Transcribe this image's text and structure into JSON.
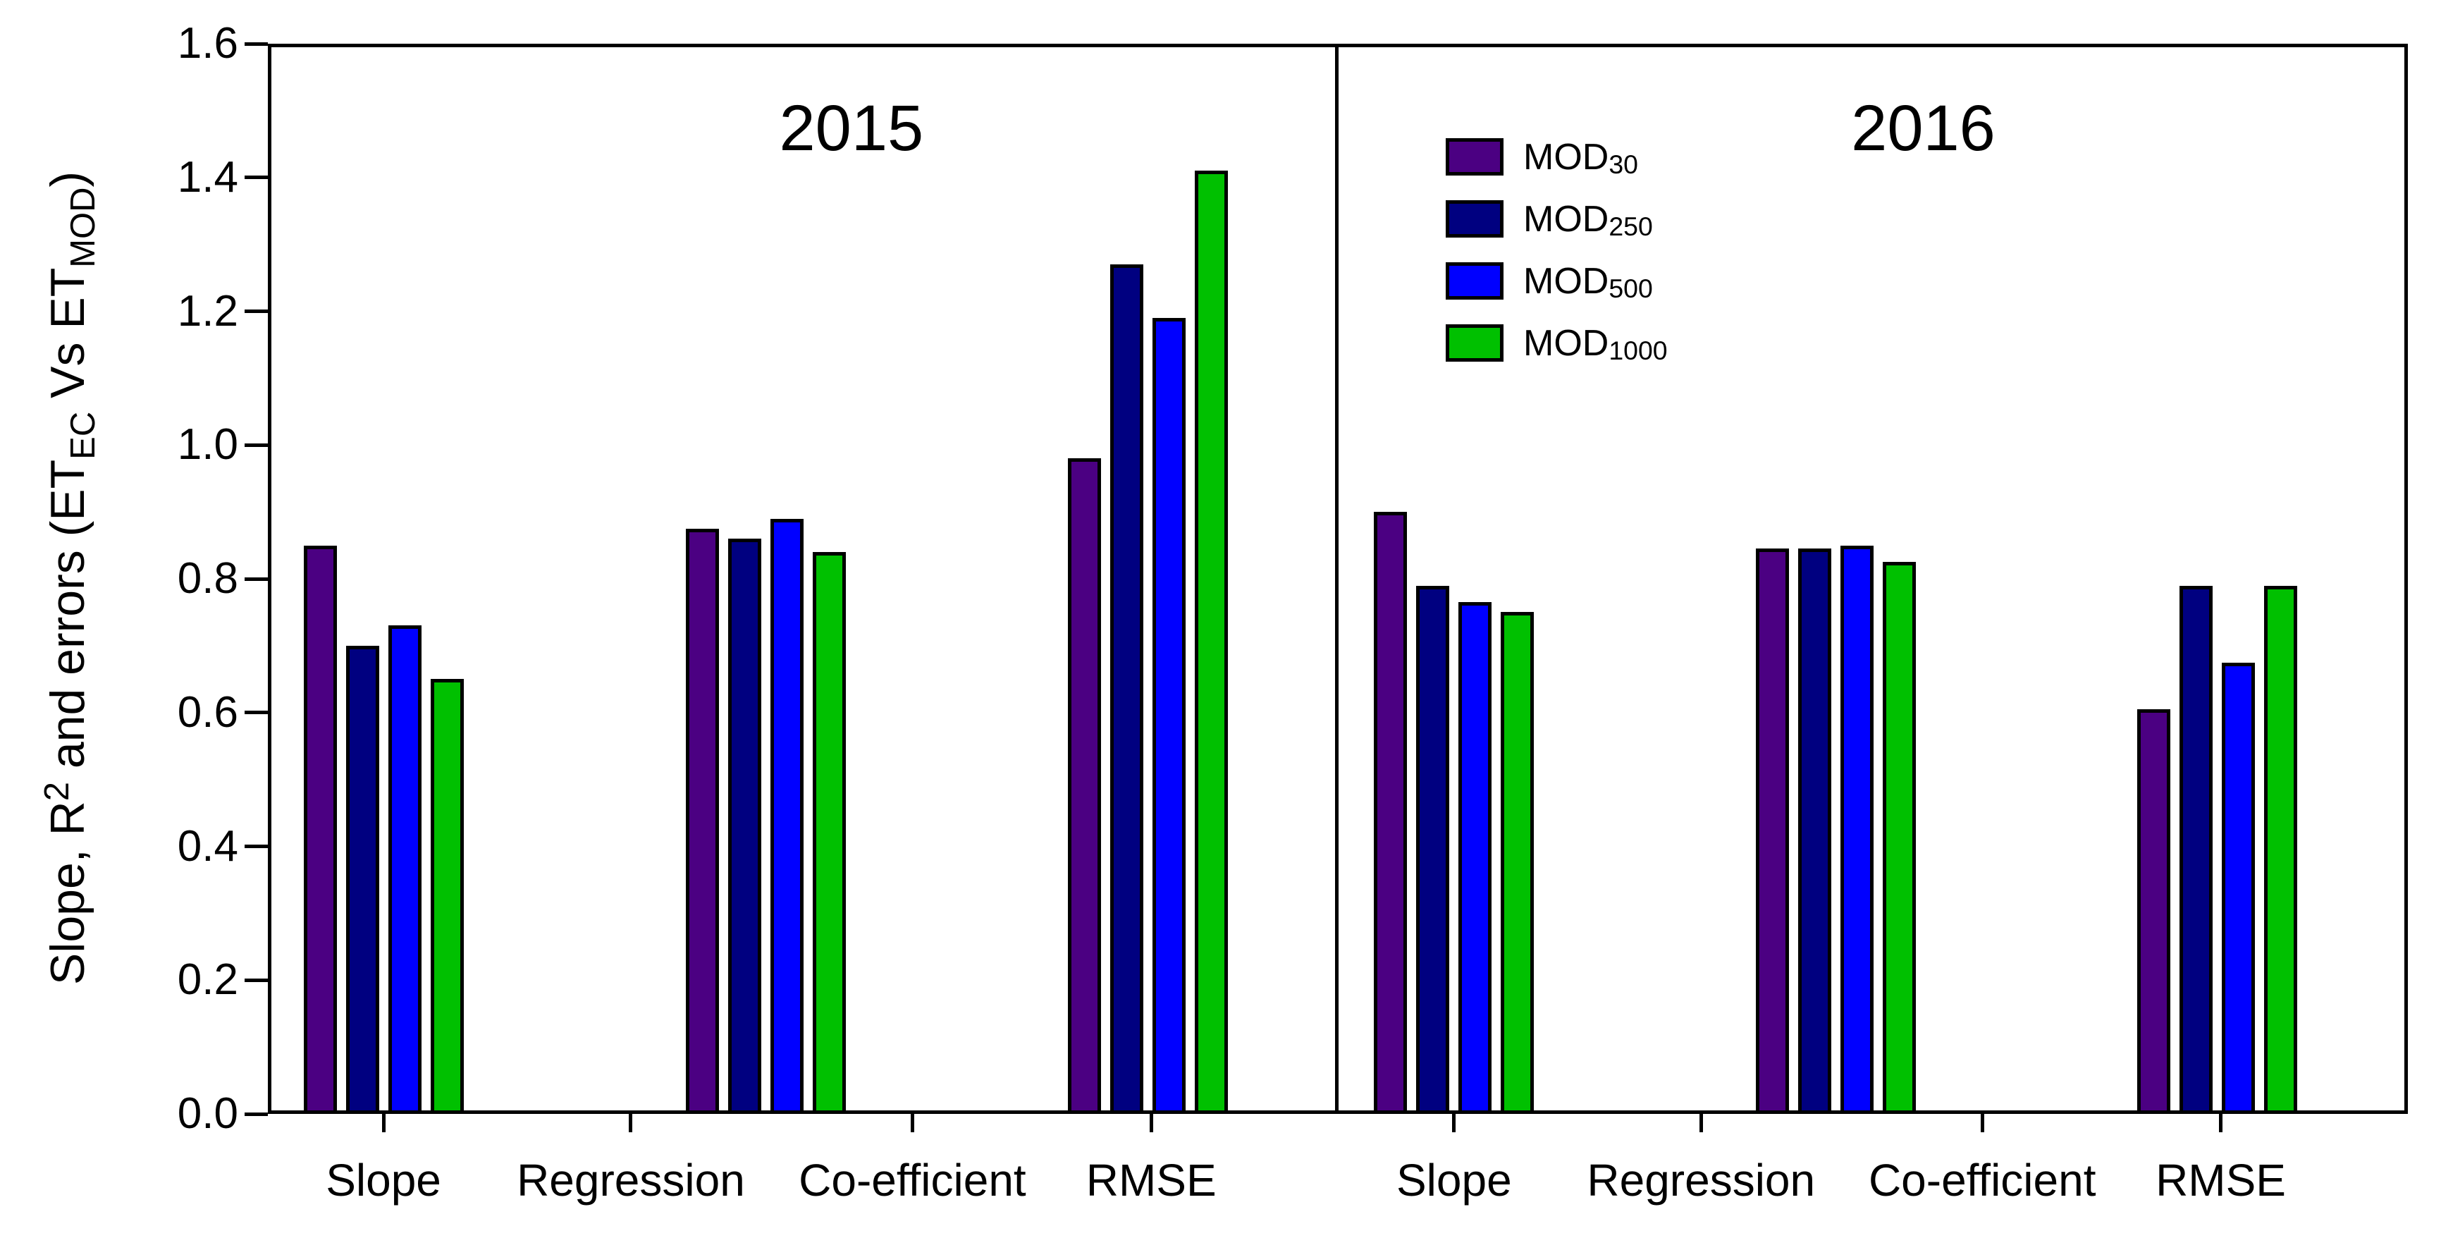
{
  "figure": {
    "background": "#ffffff",
    "axis_color": "#000000",
    "panels": [
      {
        "title": "2015"
      },
      {
        "title": "2016"
      }
    ],
    "series": [
      {
        "name": "MOD",
        "subscript": "30",
        "color": "#4B0082"
      },
      {
        "name": "MOD",
        "subscript": "250",
        "color": "#000080"
      },
      {
        "name": "MOD",
        "subscript": "500",
        "color": "#0000FF"
      },
      {
        "name": "MOD",
        "subscript": "1000",
        "color": "#00C000"
      }
    ],
    "x_tick_labels": [
      "Slope",
      "Regression",
      "Co-efficient",
      "RMSE"
    ],
    "y_axis": {
      "min": 0,
      "max": 1.6,
      "step": 0.2,
      "tick_labels": [
        "0.0",
        "0.2",
        "0.4",
        "0.6",
        "0.8",
        "1.0",
        "1.2",
        "1.4",
        "1.6"
      ],
      "title_parts": [
        {
          "text": "Slope, R"
        },
        {
          "text": "2",
          "style": "sup"
        },
        {
          "text": " and errors (ET",
          "style": ""
        },
        {
          "text": "EC",
          "style": "sub"
        },
        {
          "text": " Vs ET",
          "style": ""
        },
        {
          "text": "MOD",
          "style": "sub"
        },
        {
          "text": ")",
          "style": ""
        }
      ]
    }
  },
  "chart_data": {
    "type": "bar",
    "title": "",
    "xlabel": "",
    "ylabel": "Slope, R2 and errors (ETEC Vs ETMOD)",
    "ylim": [
      0,
      1.6
    ],
    "grid": false,
    "legend_position": "upper-left of 2016 panel",
    "categories": [
      "Slope",
      "Regression Co-efficient",
      "RMSE"
    ],
    "x_axis_tick_labels": [
      "Slope",
      "Regression",
      "Co-efficient",
      "RMSE"
    ],
    "panels": [
      {
        "title": "2015",
        "series": [
          {
            "name": "MOD30",
            "color": "#4B0082",
            "values": [
              0.85,
              0.875,
              0.98
            ]
          },
          {
            "name": "MOD250",
            "color": "#000080",
            "values": [
              0.7,
              0.86,
              1.27
            ]
          },
          {
            "name": "MOD500",
            "color": "#0000FF",
            "values": [
              0.73,
              0.89,
              1.19
            ]
          },
          {
            "name": "MOD1000",
            "color": "#00C000",
            "values": [
              0.65,
              0.84,
              1.41
            ]
          }
        ]
      },
      {
        "title": "2016",
        "series": [
          {
            "name": "MOD30",
            "color": "#4B0082",
            "values": [
              0.9,
              0.845,
              0.605
            ]
          },
          {
            "name": "MOD250",
            "color": "#000080",
            "values": [
              0.79,
              0.845,
              0.79
            ]
          },
          {
            "name": "MOD500",
            "color": "#0000FF",
            "values": [
              0.765,
              0.85,
              0.675
            ]
          },
          {
            "name": "MOD1000",
            "color": "#00C000",
            "values": [
              0.75,
              0.825,
              0.79
            ]
          }
        ]
      }
    ]
  }
}
